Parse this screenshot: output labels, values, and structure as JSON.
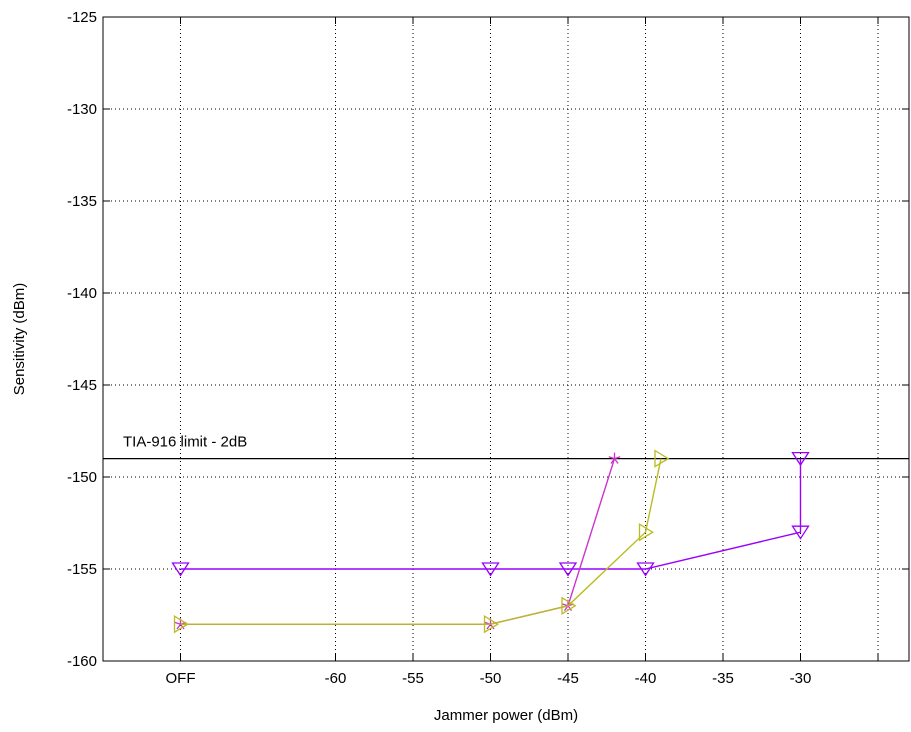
{
  "chart_data": {
    "type": "line",
    "title": "",
    "xlabel": "Jammer power (dBm)",
    "ylabel": "Sensitivity (dBm)",
    "xlim": [
      -75,
      -23
    ],
    "ylim": [
      -160,
      -125
    ],
    "grid": true,
    "x_ticks": [
      {
        "value": -70,
        "label": "OFF"
      },
      {
        "value": -60,
        "label": "-60"
      },
      {
        "value": -55,
        "label": "-55"
      },
      {
        "value": -50,
        "label": "-50"
      },
      {
        "value": -45,
        "label": "-45"
      },
      {
        "value": -40,
        "label": "-40"
      },
      {
        "value": -35,
        "label": "-35"
      },
      {
        "value": -30,
        "label": "-30"
      }
    ],
    "x_grid_extra": [
      -25
    ],
    "y_ticks": [
      {
        "value": -125,
        "label": "-125"
      },
      {
        "value": -130,
        "label": "-130"
      },
      {
        "value": -135,
        "label": "-135"
      },
      {
        "value": -140,
        "label": "-140"
      },
      {
        "value": -145,
        "label": "-145"
      },
      {
        "value": -150,
        "label": "-150"
      },
      {
        "value": -155,
        "label": "-155"
      },
      {
        "value": -160,
        "label": "-160"
      }
    ],
    "reference_line": {
      "y": -149,
      "label": "TIA-916 limit - 2dB",
      "color": "#000000"
    },
    "series": [
      {
        "color": "#9900ff",
        "marker": "triangle-down",
        "points": [
          [
            -70,
            -155
          ],
          [
            -50,
            -155
          ],
          [
            -45,
            -155
          ],
          [
            -40,
            -155
          ],
          [
            -30,
            -153
          ],
          [
            -30,
            -149
          ]
        ]
      },
      {
        "color": "#cc33cc",
        "marker": "star",
        "points": [
          [
            -70,
            -158
          ],
          [
            -50,
            -158
          ],
          [
            -45,
            -157
          ],
          [
            -42,
            -149
          ]
        ]
      },
      {
        "color": "#bbbb22",
        "marker": "triangle-right",
        "points": [
          [
            -70,
            -158
          ],
          [
            -50,
            -158
          ],
          [
            -45,
            -157
          ],
          [
            -40,
            -153
          ],
          [
            -39,
            -149
          ]
        ]
      }
    ]
  }
}
